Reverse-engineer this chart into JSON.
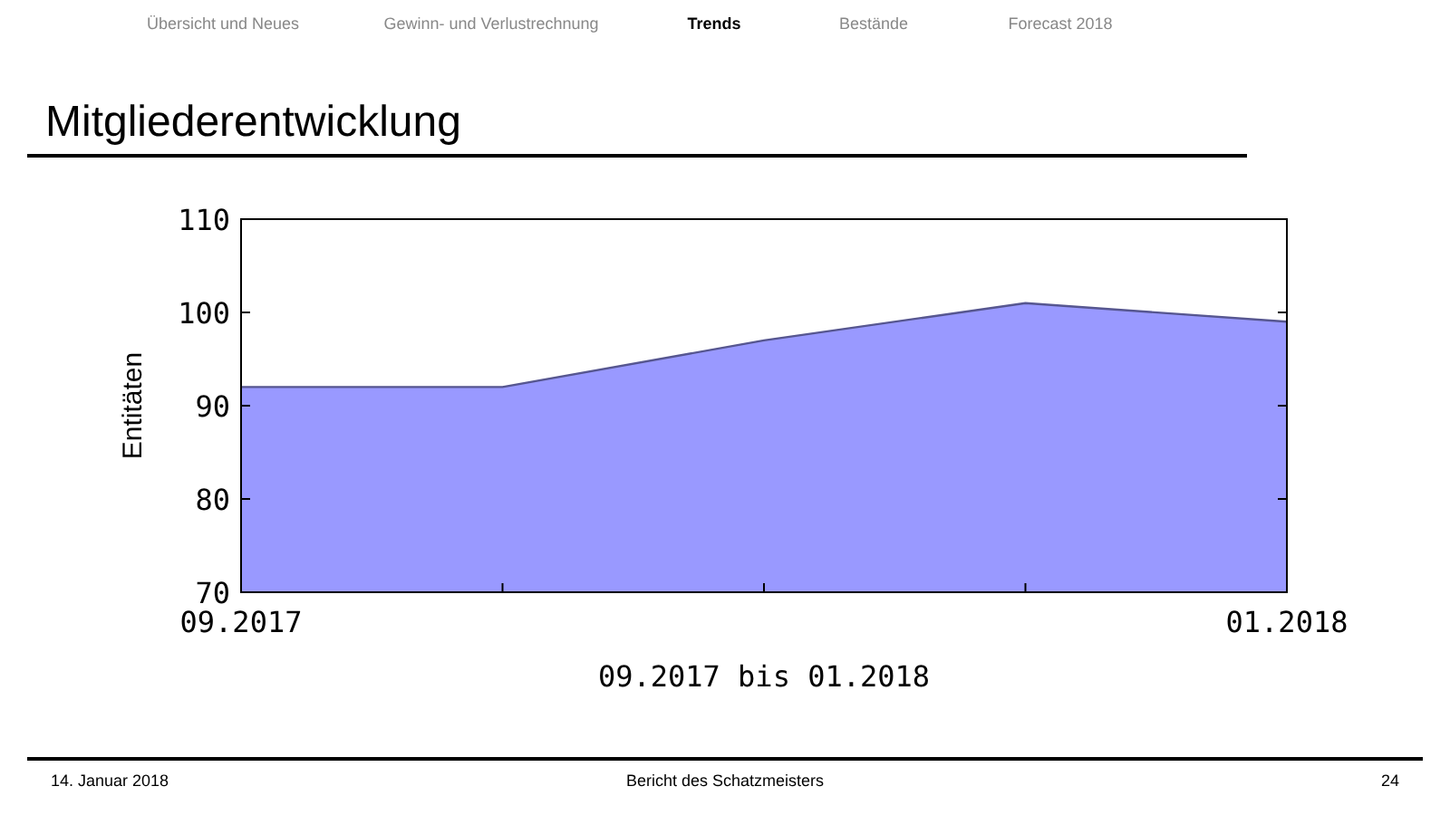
{
  "chart_data": {
    "type": "area",
    "title": "Mitgliederentwicklung",
    "xlabel": "09.2017 bis 01.2018",
    "ylabel": "Entitäten",
    "categories": [
      "09.2017",
      null,
      null,
      null,
      "01.2018"
    ],
    "series": [
      {
        "color": "#9999ff",
        "values": [
          92,
          92,
          97,
          101,
          99
        ]
      }
    ],
    "ylim": [
      70,
      110
    ],
    "yticks": [
      70,
      80,
      90,
      100,
      110
    ],
    "grid": false,
    "annotations": [
      "Übersicht und Neues",
      "Gewinn- und Verlustrechnung",
      "Trends",
      "Bestände",
      "Forecast 2018",
      "14. Januar 2018",
      "Bericht des Schatzmeisters",
      "24"
    ]
  }
}
